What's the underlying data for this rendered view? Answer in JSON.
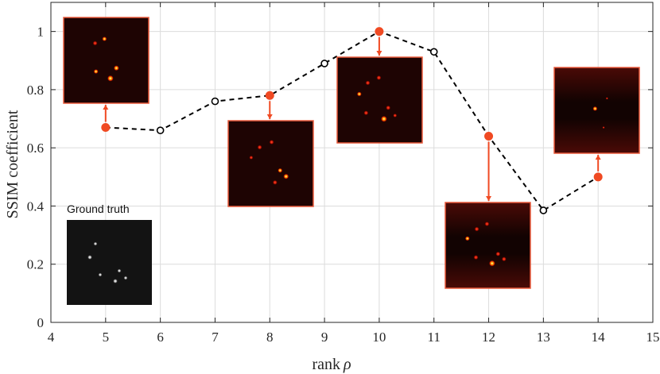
{
  "chart_data": {
    "type": "line",
    "xlabel": "rank",
    "xlabel_symbol": "ρ",
    "ylabel": "SSIM coefficient",
    "xlim": [
      4,
      15
    ],
    "ylim": [
      0,
      1.1
    ],
    "x_ticks": [
      4,
      5,
      6,
      7,
      8,
      9,
      10,
      11,
      12,
      13,
      14,
      15
    ],
    "y_ticks": [
      0,
      0.2,
      0.4,
      0.6,
      0.8,
      1
    ],
    "y_tick_labels": [
      "0",
      "0.2",
      "0.4",
      "0.6",
      "0.8",
      "1"
    ],
    "grid": true,
    "line_style": "dashed",
    "series": [
      {
        "x": [
          5,
          6,
          7,
          8,
          9,
          10,
          11,
          12,
          13,
          14
        ],
        "y": [
          0.67,
          0.66,
          0.76,
          0.78,
          0.89,
          1.0,
          0.93,
          0.64,
          0.385,
          0.5
        ]
      }
    ],
    "highlighted_x": [
      5,
      8,
      10,
      12,
      14
    ],
    "colors": {
      "line": "#000000",
      "highlight": "#f04a23",
      "inset_border": "#e8583a",
      "grid": "#dcdcdc"
    },
    "insets": [
      {
        "x": 5,
        "direction": "up",
        "colormap": "hot"
      },
      {
        "x": 8,
        "direction": "down",
        "colormap": "hot"
      },
      {
        "x": 10,
        "direction": "down",
        "colormap": "hot"
      },
      {
        "x": 12,
        "direction": "down",
        "colormap": "hot"
      },
      {
        "x": 14,
        "direction": "up",
        "colormap": "hot"
      }
    ],
    "ground_truth_label": "Ground truth"
  }
}
